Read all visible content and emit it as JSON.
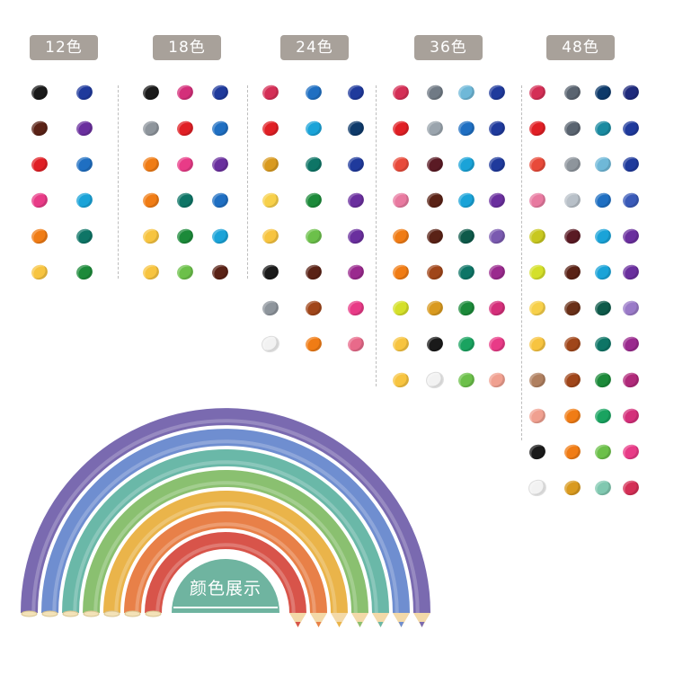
{
  "tabs": [
    {
      "label": "12色"
    },
    {
      "label": "18色"
    },
    {
      "label": "24色"
    },
    {
      "label": "36色"
    },
    {
      "label": "48色"
    }
  ],
  "sets": [
    {
      "name": "12色",
      "columns": [
        [
          "#1a1a1a",
          "#5a2216",
          "#e01f25",
          "#e83b87",
          "#f07c15",
          "#f7c440"
        ],
        [
          "#1f3a9c",
          "#6a2f9e",
          "#1f6fc2",
          "#1aa3d8",
          "#0e7566",
          "#1c8a3a"
        ]
      ]
    },
    {
      "name": "18色",
      "columns": [
        [
          "#1a1a1a",
          "#8e959c",
          "#f07c15",
          "#f07c15",
          "#f7c440",
          "#f7c440"
        ],
        [
          "#d42f7a",
          "#e01f25",
          "#e83b87",
          "#0e7566",
          "#1c8a3a",
          "#6cc04a"
        ],
        [
          "#1f3a9c",
          "#1f6fc2",
          "#6a2f9e",
          "#1f6fc2",
          "#1aa3d8",
          "#5a2216"
        ]
      ]
    },
    {
      "name": "24色",
      "columns": [
        [
          "#d42f56",
          "#e01f25",
          "#d99a1f",
          "#f7d04a",
          "#f7c440",
          "#1a1a1a",
          "#8e959c",
          "#f2f2f2"
        ],
        [
          "#1f6fc2",
          "#1aa3d8",
          "#0e7566",
          "#1c8a3a",
          "#6cc04a",
          "#5a2216",
          "#a0461a",
          "#f07c15"
        ],
        [
          "#1f3a9c",
          "#0e3a6a",
          "#1f3a9c",
          "#6a2f9e",
          "#6a2f9e",
          "#9a2a8e",
          "#e83b87",
          "#e86a8a"
        ]
      ]
    },
    {
      "name": "36色",
      "columns": [
        [
          "#d42f56",
          "#e01f25",
          "#e84a3a",
          "#e87aa0",
          "#f07c15",
          "#f07c15",
          "#d4e02a",
          "#f7c440",
          "#f7c440"
        ],
        [
          "#707a85",
          "#9aa4ad",
          "#5a1a24",
          "#5a2216",
          "#5a2216",
          "#a0461a",
          "#d99a1f",
          "#1a1a1a",
          "#f2f2f2"
        ],
        [
          "#6fb8d8",
          "#1f6fc2",
          "#1aa3d8",
          "#1aa3d8",
          "#0e5a4a",
          "#0e7566",
          "#1c8a3a",
          "#1aa360",
          "#6cc04a"
        ],
        [
          "#1f3a9c",
          "#1f3a9c",
          "#1f3a9c",
          "#6a2f9e",
          "#7a5ab0",
          "#9a2a8e",
          "#d42f7a",
          "#e83b87",
          "#f0a090"
        ]
      ]
    },
    {
      "name": "48色",
      "columns": [
        [
          "#d42f56",
          "#e01f25",
          "#e84a3a",
          "#e87aa0",
          "#c8c820",
          "#d4e02a",
          "#f7d04a",
          "#f7c440",
          "#b08060",
          "#f0a090",
          "#1a1a1a",
          "#f2f2f2"
        ],
        [
          "#5a6470",
          "#5a6470",
          "#8e959c",
          "#b8c0c8",
          "#5a1a24",
          "#5a2216",
          "#6a3018",
          "#a0461a",
          "#a0461a",
          "#f07c15",
          "#f07c15",
          "#d99a1f"
        ],
        [
          "#0e3a6a",
          "#1a8aa0",
          "#6fb8d8",
          "#1f6fc2",
          "#1aa3d8",
          "#1aa3d8",
          "#0e5a4a",
          "#0e7566",
          "#1c8a3a",
          "#1aa360",
          "#6cc04a",
          "#80c8b0"
        ],
        [
          "#1f2a7c",
          "#1f3a9c",
          "#1f3a9c",
          "#3a5ab8",
          "#6a2f9e",
          "#6a2f9e",
          "#9a7ac8",
          "#9a2a8e",
          "#b02a7a",
          "#d42f7a",
          "#e83b87",
          "#d42f56"
        ]
      ]
    }
  ],
  "rainbow": {
    "caption": "颜色展示",
    "bands": [
      "#7a6ab0",
      "#6f8ed0",
      "#6ab8a8",
      "#8ac070",
      "#eab44a",
      "#e88048",
      "#d8544a"
    ],
    "caption_color": "#6fb4a0"
  }
}
